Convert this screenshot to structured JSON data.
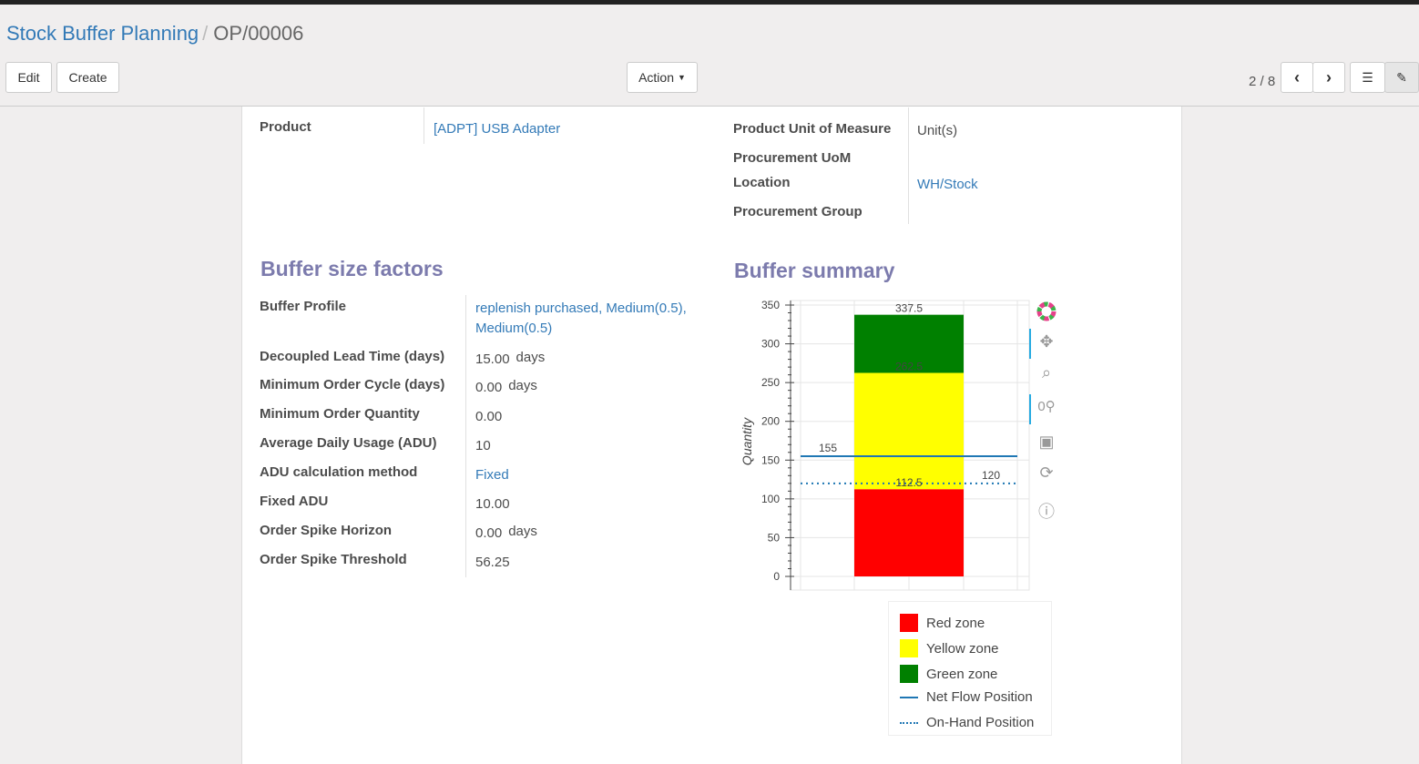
{
  "breadcrumb": {
    "parent": "Stock Buffer Planning",
    "current": "OP/00006"
  },
  "buttons": {
    "edit": "Edit",
    "create": "Create",
    "action": "Action"
  },
  "pager": {
    "value": "2 / 8"
  },
  "header_fields": {
    "product_label": "Product",
    "product_value": "[ADPT] USB Adapter",
    "uom_label": "Product Unit of Measure",
    "uom_value": "Unit(s)",
    "proc_uom_label": "Procurement UoM",
    "location_label": "Location",
    "location_value": "WH/Stock",
    "proc_group_label": "Procurement Group"
  },
  "factors": {
    "title": "Buffer size factors",
    "rows": [
      {
        "label": "Buffer Profile",
        "value": "replenish purchased, Medium(0.5), Medium(0.5)",
        "link": true
      },
      {
        "label": "Decoupled Lead Time (days)",
        "value": "15.00",
        "unit": "days"
      },
      {
        "label": "Minimum Order Cycle (days)",
        "value": "0.00",
        "unit": "days"
      },
      {
        "label": "Minimum Order Quantity",
        "value": "0.00"
      },
      {
        "label": "Average Daily Usage (ADU)",
        "value": "10"
      },
      {
        "label": "ADU calculation method",
        "value": "Fixed",
        "link": true
      },
      {
        "label": "Fixed ADU",
        "value": "10.00"
      },
      {
        "label": "Order Spike Horizon",
        "value": "0.00",
        "unit": "days"
      },
      {
        "label": "Order Spike Threshold",
        "value": "56.25"
      }
    ]
  },
  "summary": {
    "title": "Buffer summary"
  },
  "chart_data": {
    "type": "bar",
    "stacked": true,
    "ylabel": "Quantity",
    "ylim": [
      0,
      350
    ],
    "yticks": [
      "0",
      "50",
      "100",
      "150",
      "200",
      "250",
      "300",
      "350"
    ],
    "grid": true,
    "series": [
      {
        "name": "Red zone",
        "from": 0,
        "to": 112.5,
        "color": "#ff0000"
      },
      {
        "name": "Yellow zone",
        "from": 112.5,
        "to": 262.5,
        "color": "#ffff00"
      },
      {
        "name": "Green zone",
        "from": 262.5,
        "to": 337.5,
        "color": "#008000"
      }
    ],
    "bar_labels": [
      "112.5",
      "262.5",
      "337.5"
    ],
    "lines": [
      {
        "name": "Net Flow Position",
        "value": 155,
        "label": "155",
        "style": "solid",
        "color": "#1f77b4"
      },
      {
        "name": "On-Hand Position",
        "value": 120,
        "label": "120",
        "style": "dotted",
        "color": "#1f77b4"
      }
    ],
    "legend": "bottom"
  }
}
